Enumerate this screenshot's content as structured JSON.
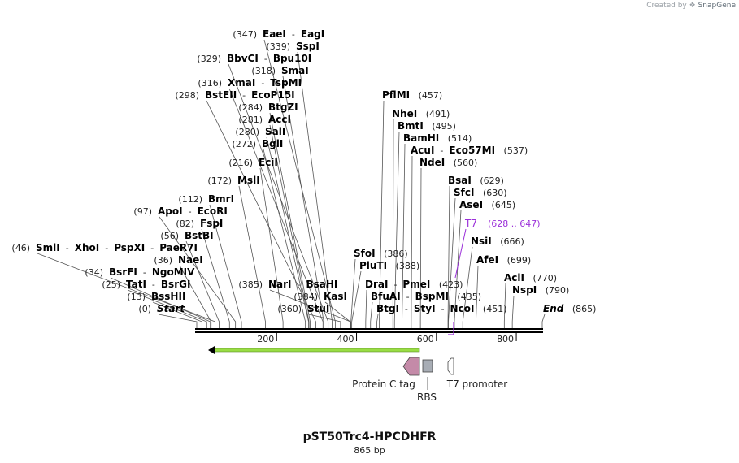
{
  "credit": {
    "prefix": "Created by",
    "brand": "SnapGene"
  },
  "map": {
    "name": "pST50Trc4-HPCDHFR",
    "length_label": "865 bp",
    "length": 865,
    "ticks": [
      "200",
      "400",
      "600",
      "800"
    ],
    "labels": [
      {
        "pos": "(347)",
        "names": [
          "EaeI",
          "EagI"
        ],
        "cut": 347
      },
      {
        "pos": "(339)",
        "names": [
          "SspI"
        ],
        "cut": 339
      },
      {
        "pos": "(329)",
        "names": [
          "BbvCI",
          "Bpu10I"
        ],
        "cut": 329
      },
      {
        "pos": "(318)",
        "names": [
          "SmaI"
        ],
        "cut": 318
      },
      {
        "pos": "(316)",
        "names": [
          "XmaI",
          "TspMI"
        ],
        "cut": 316
      },
      {
        "pos": "(298)",
        "names": [
          "BstEII",
          "EcoP15I"
        ],
        "cut": 298
      },
      {
        "pos": "(284)",
        "names": [
          "BtgZI"
        ],
        "cut": 284
      },
      {
        "pos": "(281)",
        "names": [
          "AccI"
        ],
        "cut": 281
      },
      {
        "pos": "(280)",
        "names": [
          "SalI"
        ],
        "cut": 280
      },
      {
        "pos": "(272)",
        "names": [
          "BglI"
        ],
        "cut": 272
      },
      {
        "pos": "(216)",
        "names": [
          "EciI"
        ],
        "cut": 216
      },
      {
        "pos": "(172)",
        "names": [
          "MslI"
        ],
        "cut": 172
      },
      {
        "pos": "(112)",
        "names": [
          "BmrI"
        ],
        "cut": 112
      },
      {
        "pos": "(97)",
        "names": [
          "ApoI",
          "EcoRI"
        ],
        "cut": 97
      },
      {
        "pos": "(82)",
        "names": [
          "FspI"
        ],
        "cut": 82
      },
      {
        "pos": "(56)",
        "names": [
          "BstBI"
        ],
        "cut": 56
      },
      {
        "pos": "(46)",
        "names": [
          "SmlI",
          "XhoI",
          "PspXI",
          "PaeR7I"
        ],
        "cut": 46
      },
      {
        "pos": "(36)",
        "names": [
          "NaeI"
        ],
        "cut": 36
      },
      {
        "pos": "(34)",
        "names": [
          "BsrFI",
          "NgoMIV"
        ],
        "cut": 34
      },
      {
        "pos": "(25)",
        "names": [
          "TatI",
          "BsrGI"
        ],
        "cut": 25
      },
      {
        "pos": "(13)",
        "names": [
          "BssHII"
        ],
        "cut": 13
      },
      {
        "pos": "(0)",
        "names": [
          "Start"
        ],
        "cut": 0,
        "italic": true
      },
      {
        "pos": "(385)",
        "names": [
          "NarI",
          "BsaHI"
        ],
        "cut": 385
      },
      {
        "pos": "(384)",
        "names": [
          "KasI"
        ],
        "cut": 384
      },
      {
        "pos": "(360)",
        "names": [
          "StuI"
        ],
        "cut": 360
      },
      {
        "pos": "(457)",
        "names": [
          "PflMI"
        ],
        "cut": 457,
        "pos_right": true
      },
      {
        "pos": "(491)",
        "names": [
          "NheI"
        ],
        "cut": 491,
        "pos_right": true
      },
      {
        "pos": "(495)",
        "names": [
          "BmtI"
        ],
        "cut": 495,
        "pos_right": true
      },
      {
        "pos": "(514)",
        "names": [
          "BamHI"
        ],
        "cut": 514,
        "pos_right": true
      },
      {
        "pos": "(537)",
        "names": [
          "AcuI",
          "Eco57MI"
        ],
        "cut": 537,
        "pos_right": true
      },
      {
        "pos": "(560)",
        "names": [
          "NdeI"
        ],
        "cut": 560,
        "pos_right": true
      },
      {
        "pos": "(629)",
        "names": [
          "BsaI"
        ],
        "cut": 629,
        "pos_right": true
      },
      {
        "pos": "(630)",
        "names": [
          "SfcI"
        ],
        "cut": 630,
        "pos_right": true
      },
      {
        "pos": "(645)",
        "names": [
          "AseI"
        ],
        "cut": 645,
        "pos_right": true
      },
      {
        "pos": "(666)",
        "names": [
          "NsiI"
        ],
        "cut": 666,
        "pos_right": true
      },
      {
        "pos": "(699)",
        "names": [
          "AfeI"
        ],
        "cut": 699,
        "pos_right": true
      },
      {
        "pos": "(770)",
        "names": [
          "AclI"
        ],
        "cut": 770,
        "pos_right": true
      },
      {
        "pos": "(790)",
        "names": [
          "NspI"
        ],
        "cut": 790,
        "pos_right": true
      },
      {
        "pos": "(865)",
        "names": [
          "End"
        ],
        "cut": 865,
        "pos_right": true,
        "italic": true
      },
      {
        "pos": "(386)",
        "names": [
          "SfoI"
        ],
        "cut": 386,
        "pos_right": true
      },
      {
        "pos": "(388)",
        "names": [
          "PluTI"
        ],
        "cut": 388,
        "pos_right": true
      },
      {
        "pos": "(423)",
        "names": [
          "DraI",
          "PmeI"
        ],
        "cut": 423,
        "pos_right": true
      },
      {
        "pos": "(435)",
        "names": [
          "BfuAI",
          "BspMI"
        ],
        "cut": 435,
        "pos_right": true
      },
      {
        "pos": "(451)",
        "names": [
          "BtgI",
          "StyI",
          "NcoI"
        ],
        "cut": 451,
        "pos_right": true
      }
    ],
    "t7_label": {
      "name": "T7",
      "range": "(628 .. 647)",
      "color": "#9b30d9"
    },
    "features": [
      {
        "name": "Protein C tag",
        "color": "#c48aa8"
      },
      {
        "name": "RBS",
        "color": "#a8adb5"
      },
      {
        "name": "T7 promoter",
        "color": "#ffffff"
      }
    ],
    "orf_color": "#99dd44"
  }
}
